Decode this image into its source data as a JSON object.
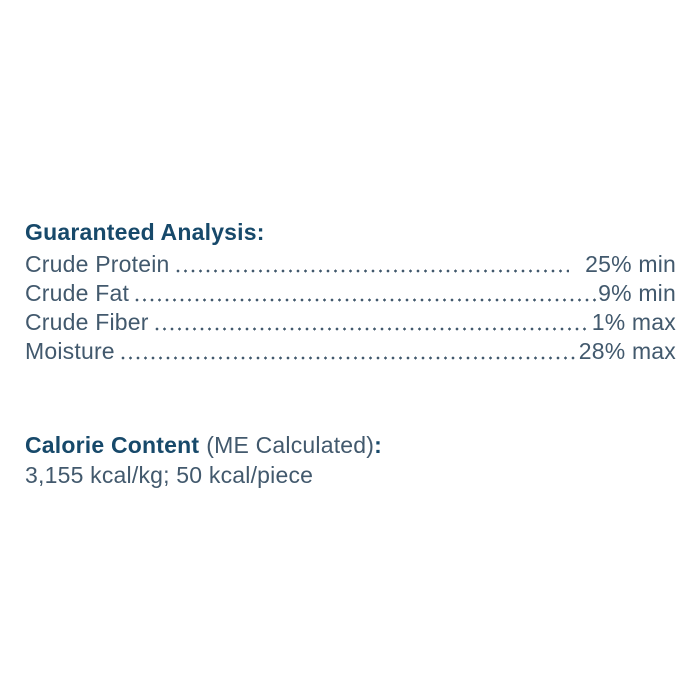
{
  "colors": {
    "heading_navy": "#17496a",
    "body_slate": "#42596d",
    "background": "#ffffff"
  },
  "guaranteed_analysis": {
    "title": "Guaranteed Analysis:",
    "rows": [
      {
        "label": "Crude Protein",
        "value": "25% min"
      },
      {
        "label": "Crude Fat",
        "value": "9% min"
      },
      {
        "label": "Crude Fiber",
        "value": "1% max"
      },
      {
        "label": "Moisture",
        "value": "28% max"
      }
    ]
  },
  "calorie_content": {
    "title_bold": "Calorie Content",
    "title_regular": "(ME Calculated)",
    "title_colon": ":",
    "value_line": "3,155 kcal/kg; 50 kcal/piece"
  }
}
